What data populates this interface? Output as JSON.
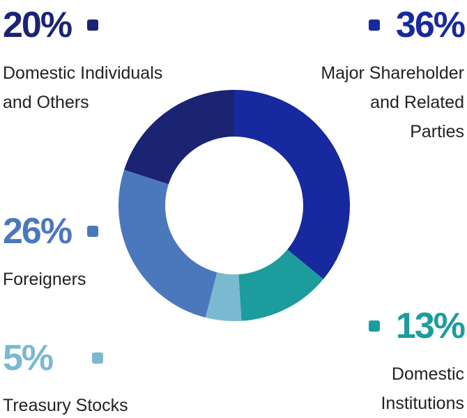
{
  "chart_data": {
    "type": "pie",
    "style": "donut",
    "slices": [
      {
        "name": "Major Shareholder and Related Parties",
        "name_lines": [
          "Major Shareholder",
          "and Related",
          "Parties"
        ],
        "value": 36,
        "label": "36%",
        "color": "#17299e"
      },
      {
        "name": "Domestic Institutions",
        "name_lines": [
          "Domestic",
          "Institutions"
        ],
        "value": 13,
        "label": "13%",
        "color": "#1c9c9d"
      },
      {
        "name": "Treasury Stocks",
        "name_lines": [
          "Treasury Stocks"
        ],
        "value": 5,
        "label": "5%",
        "color": "#7ab9cf"
      },
      {
        "name": "Foreigners",
        "name_lines": [
          "Foreigners"
        ],
        "value": 26,
        "label": "26%",
        "color": "#4b77bd"
      },
      {
        "name": "Domestic Individuals and Others",
        "name_lines": [
          "Domestic Individuals",
          "and Others"
        ],
        "value": 20,
        "label": "20%",
        "color": "#1b2373"
      }
    ]
  }
}
